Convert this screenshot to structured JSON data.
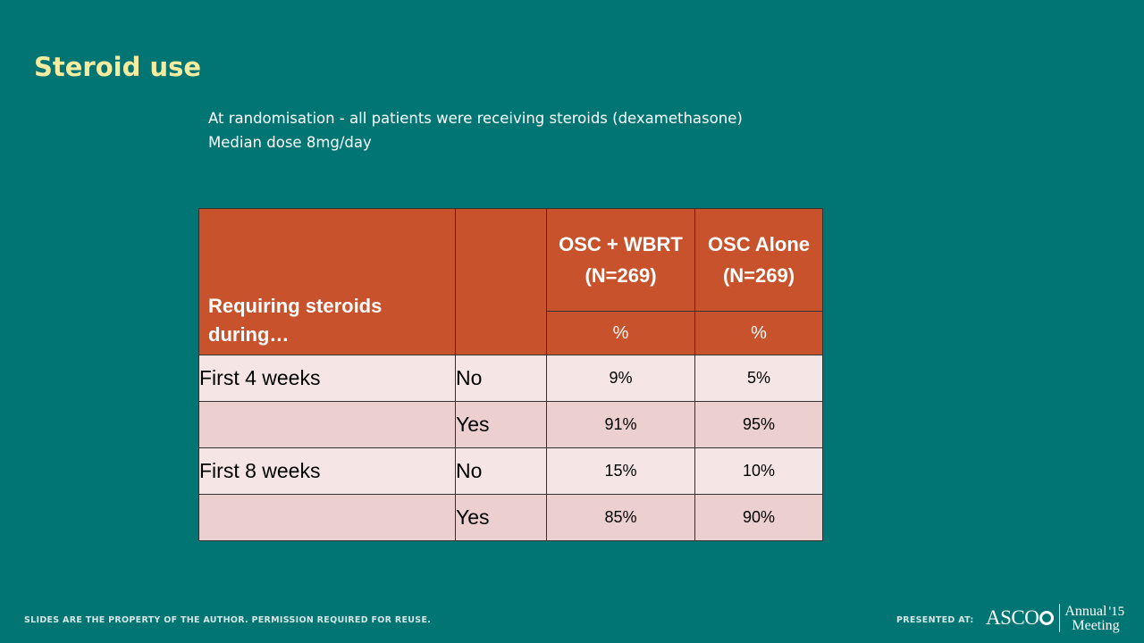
{
  "slide": {
    "title": "Steroid use",
    "subtitle_lines": [
      "At randomisation - all patients were receiving steroids (dexamethasone)",
      "Median dose 8mg/day"
    ]
  },
  "table": {
    "header_title": "Requiring steroids during…",
    "columns": [
      {
        "label": "OSC + WBRT (N=269)",
        "unit": "%"
      },
      {
        "label": "OSC Alone (N=269)",
        "unit": "%"
      }
    ],
    "rows": [
      {
        "period": "First 4 weeks",
        "response": "No",
        "values": [
          "9%",
          "5%"
        ]
      },
      {
        "period": "",
        "response": "Yes",
        "values": [
          "91%",
          "95%"
        ]
      },
      {
        "period": "First 8 weeks",
        "response": "No",
        "values": [
          "15%",
          "10%"
        ]
      },
      {
        "period": "",
        "response": "Yes",
        "values": [
          "85%",
          "90%"
        ]
      }
    ]
  },
  "footer": {
    "disclaimer": "SLIDES ARE THE PROPERTY OF THE AUTHOR. PERMISSION REQUIRED FOR REUSE.",
    "presented_at": "PRESENTED AT:",
    "logo": {
      "org": "ASCO",
      "line1": "Annual",
      "year": "'15",
      "line2": "Meeting"
    }
  },
  "colors": {
    "background": "#007574",
    "title": "#f6eca0",
    "header_fill": "#c8522b",
    "row_light": "#f5e6e5",
    "row_dark": "#ecd0cf"
  }
}
